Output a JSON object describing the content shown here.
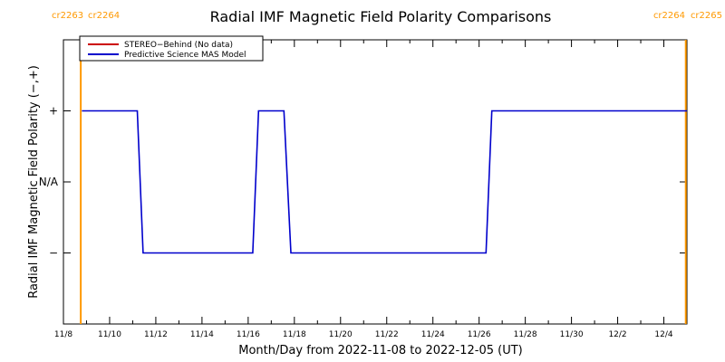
{
  "chart_data": {
    "type": "line",
    "title": "Radial IMF Magnetic Field Polarity Comparisons",
    "xlabel": "Month/Day from 2022-11-08 to 2022-12-05 (UT)",
    "ylabel": "Radial IMF Magnetic Field Polarity (−,+)",
    "xlim": [
      0,
      27
    ],
    "ylim": [
      -2,
      2
    ],
    "x_tick_values": [
      0,
      2,
      4,
      6,
      8,
      10,
      12,
      14,
      16,
      18,
      20,
      22,
      24,
      26
    ],
    "x_tick_labels": [
      "11/8",
      "11/10",
      "11/12",
      "11/14",
      "11/16",
      "11/18",
      "11/20",
      "11/22",
      "11/24",
      "11/26",
      "11/28",
      "11/30",
      "12/2",
      "12/4"
    ],
    "y_tick_values": [
      1,
      0,
      -1
    ],
    "y_tick_labels": [
      "+",
      "N/A",
      "−"
    ],
    "legend_position": "top-left",
    "series": [
      {
        "name": "STEREO−Behind (No data)",
        "color": "#cc0000",
        "x": [],
        "y": []
      },
      {
        "name": "Predictive Science MAS Model",
        "color": "#0000cc",
        "x": [
          0.8,
          3.2,
          3.45,
          8.2,
          8.45,
          9.55,
          9.85,
          18.3,
          18.55,
          27
        ],
        "y": [
          1,
          1,
          -1,
          -1,
          1,
          1,
          -1,
          -1,
          1,
          1
        ]
      }
    ],
    "carrington_markers": [
      {
        "x": 0.75,
        "left_label": "cr2263",
        "right_label": "cr2264",
        "color": "#ff9900"
      },
      {
        "x": 26.95,
        "left_label": "cr2264",
        "right_label": "cr2265",
        "color": "#ff9900"
      }
    ]
  }
}
